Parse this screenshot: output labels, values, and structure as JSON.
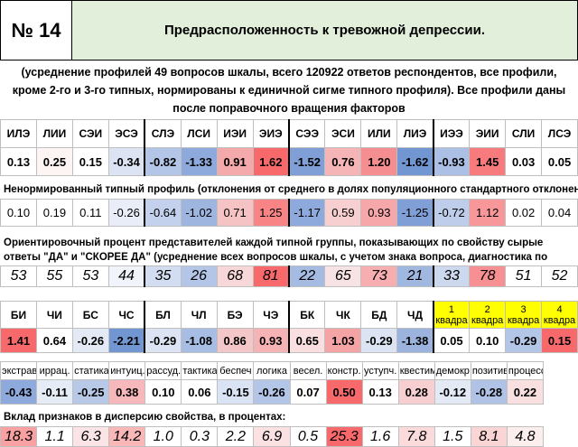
{
  "header": {
    "number": "№ 14",
    "title": "Предрасположенность к тревожной депрессии."
  },
  "description": "(усреднение профилей 49 вопросов шкалы, всего 120922 ответов респондентов, все профили, кроме 2-го и 3-го типных, нормированы к единичной сигме типного профиля). Все профили даны после поправочного вращения факторов",
  "types_table": {
    "labels": [
      "ИЛЭ",
      "ЛИИ",
      "СЭИ",
      "ЭСЭ",
      "СЛЭ",
      "ЛСИ",
      "ИЭИ",
      "ЭИЭ",
      "СЭЭ",
      "ЭСИ",
      "ИЛИ",
      "ЛИЭ",
      "ИЭЭ",
      "ЭИИ",
      "СЛИ",
      "ЛСЭ"
    ],
    "values": [
      "0.13",
      "0.25",
      "0.15",
      "-0.34",
      "-0.82",
      "-1.33",
      "0.91",
      "1.62",
      "-1.52",
      "0.76",
      "1.20",
      "-1.62",
      "-0.93",
      "1.45",
      "0.03",
      "0.05"
    ],
    "colors": [
      "#ffffff",
      "#fdf4f4",
      "#ffffff",
      "#dce4f3",
      "#b4c6e7",
      "#8ea9db",
      "#f4a9ab",
      "#f8696b",
      "#7f9fd6",
      "#f5b5b6",
      "#f58e90",
      "#7196d2",
      "#abc0e4",
      "#f77b7d",
      "#ffffff",
      "#ffffff"
    ]
  },
  "unnormalized": {
    "title": "Ненормированный типный профиль (отклонения от среднего  в долях популяционного стандартного отклонения):",
    "values": [
      "0.10",
      "0.19",
      "0.11",
      "-0.26",
      "-0.64",
      "-1.02",
      "0.71",
      "1.25",
      "-1.17",
      "0.59",
      "0.93",
      "-1.25",
      "-0.72",
      "1.12",
      "0.02",
      "0.04"
    ],
    "colors": [
      "#ffffff",
      "#ffffff",
      "#ffffff",
      "#e8edf7",
      "#c3d1ec",
      "#9db5df",
      "#f6c3c4",
      "#f88486",
      "#8ea9db",
      "#f7cfd0",
      "#f6a7a9",
      "#7f9fd6",
      "#bdcdea",
      "#f7979a",
      "#ffffff",
      "#ffffff"
    ]
  },
  "percent": {
    "title": "Ориентировочный процент представителей каждой типной группы, показывающих по свойству сырые ответы \"ДА\" и \"СКОРЕЕ ДА\" (усреднение всех вопросов шкалы, с учетом знака вопроса, диагностика по признакам)",
    "values": [
      "53",
      "55",
      "53",
      "44",
      "35",
      "26",
      "68",
      "81",
      "22",
      "65",
      "73",
      "21",
      "33",
      "78",
      "51",
      "52"
    ],
    "colors": [
      "#ffffff",
      "#ffffff",
      "#ffffff",
      "#f1f4fa",
      "#d2ddf1",
      "#b4c6e7",
      "#f8d7d8",
      "#f8696b",
      "#a5bbe2",
      "#f8e3e4",
      "#f7aeb0",
      "#a0b7e0",
      "#cbd8ee",
      "#f79092",
      "#ffffff",
      "#ffffff"
    ]
  },
  "dichotomies": {
    "labels": [
      "БИ",
      "ЧИ",
      "БС",
      "ЧС",
      "БЛ",
      "ЧЛ",
      "БЭ",
      "ЧЭ",
      "БК",
      "ЧК",
      "БД",
      "ЧД"
    ],
    "values": [
      "1.41",
      "0.64",
      "-0.26",
      "-2.21",
      "-0.29",
      "-1.08",
      "0.86",
      "0.93",
      "0.65",
      "1.03",
      "-0.29",
      "-1.38"
    ],
    "colors": [
      "#f8696b",
      "#ffffff",
      "#e3e9f5",
      "#7196d2",
      "#dce4f3",
      "#a7bde3",
      "#f3c7c8",
      "#f5b3b5",
      "#f9dfe0",
      "#f5a4a6",
      "#dce4f3",
      "#9cb3de"
    ],
    "quadras": [
      {
        "num": "1",
        "label": "квадра",
        "value": "0.05",
        "color": "#ffffff"
      },
      {
        "num": "2",
        "label": "квадра",
        "value": "0.10",
        "color": "#ffffff"
      },
      {
        "num": "3",
        "label": "квадра",
        "value": "-0.29",
        "color": "#b4c6e7"
      },
      {
        "num": "4",
        "label": "квадра",
        "value": "0.15",
        "color": "#f8696b"
      }
    ]
  },
  "traits": {
    "labels": [
      "экстрав",
      "иррац.",
      "статика",
      "интуиц.",
      "рассуд.",
      "тактика",
      "беспеч",
      "логика",
      "весел.",
      "констр.",
      "уступч.",
      "квестим",
      "демокр",
      "позитив",
      "процесс"
    ],
    "values": [
      "-0.43",
      "-0.11",
      "-0.25",
      "0.38",
      "0.10",
      "0.06",
      "-0.15",
      "-0.26",
      "0.07",
      "0.50",
      "0.13",
      "0.28",
      "-0.12",
      "-0.28",
      "0.22"
    ],
    "colors": [
      "#8ea9db",
      "#e6ecf6",
      "#b8c9e8",
      "#f6b8ba",
      "#ffffff",
      "#ffffff",
      "#dae3f3",
      "#b4c6e7",
      "#ffffff",
      "#f8696b",
      "#ffffff",
      "#f7cfd0",
      "#e3e9f5",
      "#b0c3e6",
      "#f8e0e1"
    ]
  },
  "variance": {
    "title": "Вклад признаков в дисперсию свойства, в процентах:",
    "values": [
      "18.3",
      "1.1",
      "6.3",
      "14.2",
      "1.0",
      "0.3",
      "2.2",
      "6.9",
      "0.5",
      "25.3",
      "1.6",
      "7.8",
      "1.5",
      "8.1",
      "4.8"
    ],
    "colors": [
      "#f8a0a2",
      "#ffffff",
      "#fbe4e5",
      "#f9b7b8",
      "#ffffff",
      "#ffffff",
      "#ffffff",
      "#fbe1e2",
      "#ffffff",
      "#f8696b",
      "#ffffff",
      "#fadadb",
      "#ffffff",
      "#fad5d6",
      "#fdeeee"
    ]
  }
}
